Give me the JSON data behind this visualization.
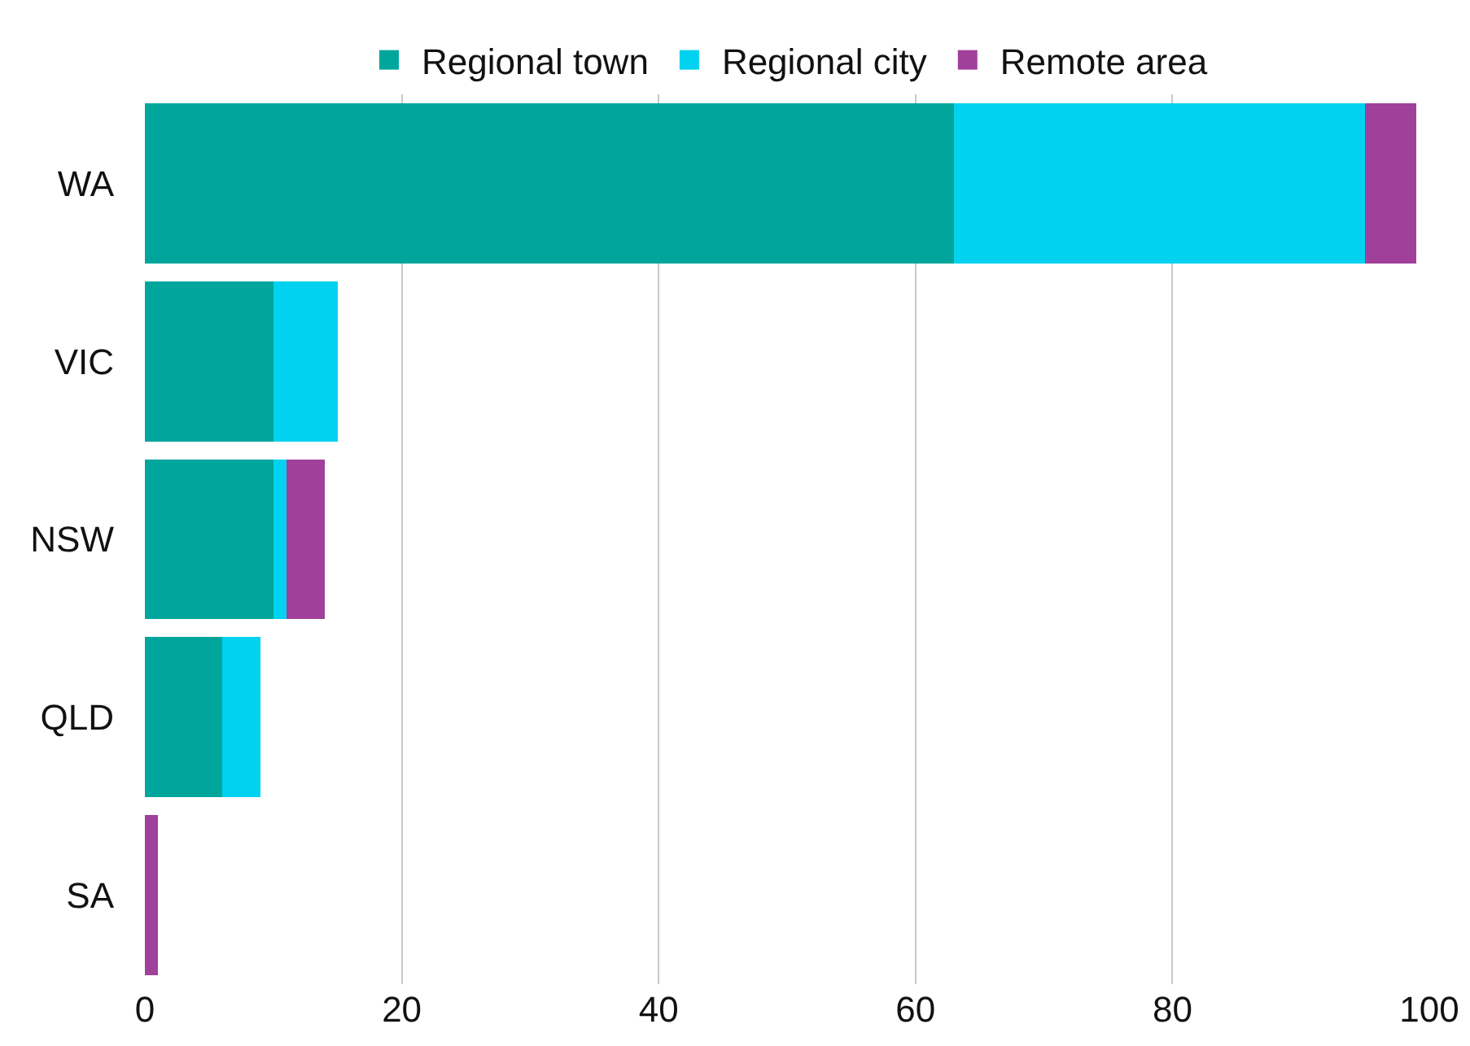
{
  "chart_data": {
    "type": "bar",
    "orientation": "horizontal",
    "stacked": true,
    "categories": [
      "WA",
      "VIC",
      "NSW",
      "QLD",
      "SA"
    ],
    "series": [
      {
        "name": "Regional town",
        "color": "#00a69c",
        "values": [
          63,
          10,
          10,
          6,
          0
        ]
      },
      {
        "name": "Regional city",
        "color": "#00d2f0",
        "values": [
          32,
          5,
          1,
          3,
          0
        ]
      },
      {
        "name": "Remote area",
        "color": "#a0409a",
        "values": [
          4,
          0,
          3,
          0,
          1
        ]
      }
    ],
    "xlim": [
      0,
      100
    ],
    "xticks": [
      0,
      20,
      40,
      60,
      80,
      100
    ],
    "grid": "x",
    "legend": "top"
  }
}
